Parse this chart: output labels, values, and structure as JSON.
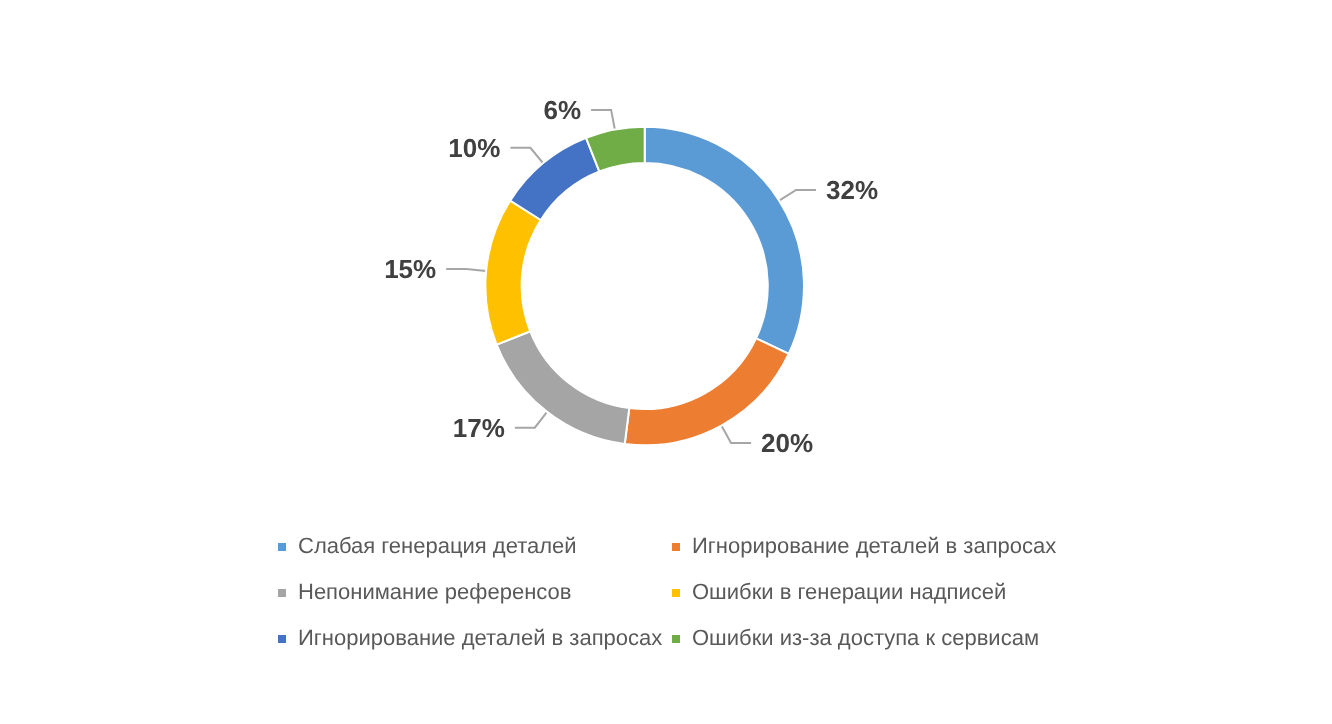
{
  "chart_data": {
    "type": "donut",
    "categories": [
      "Слабая генерация деталей",
      "Игнорирование деталей в запросах",
      "Непонимание референсов",
      "Ошибки в генерации надписей",
      "Игнорирование деталей в запросах",
      "Ошибки из-за доступа к сервисам"
    ],
    "values": [
      32,
      20,
      17,
      15,
      10,
      6
    ],
    "value_labels": [
      "32%",
      "20%",
      "17%",
      "15%",
      "10%",
      "6%"
    ],
    "colors": [
      "#5b9bd5",
      "#ed7d31",
      "#a5a5a5",
      "#ffc000",
      "#4472c4",
      "#70ad47"
    ],
    "legend": "bottom"
  }
}
